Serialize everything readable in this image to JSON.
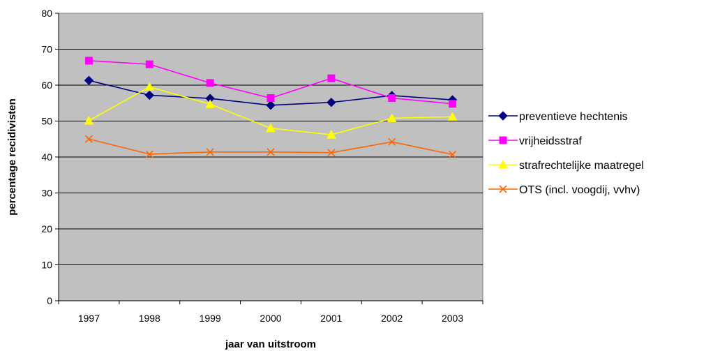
{
  "chart_data": {
    "type": "line",
    "title": "",
    "xlabel": "jaar van uitstroom",
    "ylabel": "percentage recidivisten",
    "categories": [
      "1997",
      "1998",
      "1999",
      "2000",
      "2001",
      "2002",
      "2003"
    ],
    "ylim": [
      0,
      80
    ],
    "yticks": [
      0,
      10,
      20,
      30,
      40,
      50,
      60,
      70,
      80
    ],
    "grid": true,
    "plot_background": "#c0c0c0",
    "legend_position": "right",
    "series": [
      {
        "name": "preventieve hechtenis",
        "color": "#000080",
        "marker": "diamond",
        "values": [
          61.3,
          57.2,
          56.3,
          54.4,
          55.2,
          57.1,
          55.9
        ]
      },
      {
        "name": "vrijheidsstraf",
        "color": "#ff00ff",
        "marker": "square",
        "values": [
          66.8,
          65.8,
          60.6,
          56.4,
          61.9,
          56.4,
          54.8
        ]
      },
      {
        "name": "strafrechtelijke maatregel",
        "color": "#ffff00",
        "marker": "triangle",
        "values": [
          50.1,
          59.5,
          54.7,
          48.0,
          46.2,
          50.8,
          51.2
        ]
      },
      {
        "name": "OTS (incl. voogdij, vvhv)",
        "color": "#ff6600",
        "marker": "x",
        "values": [
          45.0,
          40.8,
          41.4,
          41.4,
          41.2,
          44.2,
          40.7
        ]
      }
    ]
  }
}
